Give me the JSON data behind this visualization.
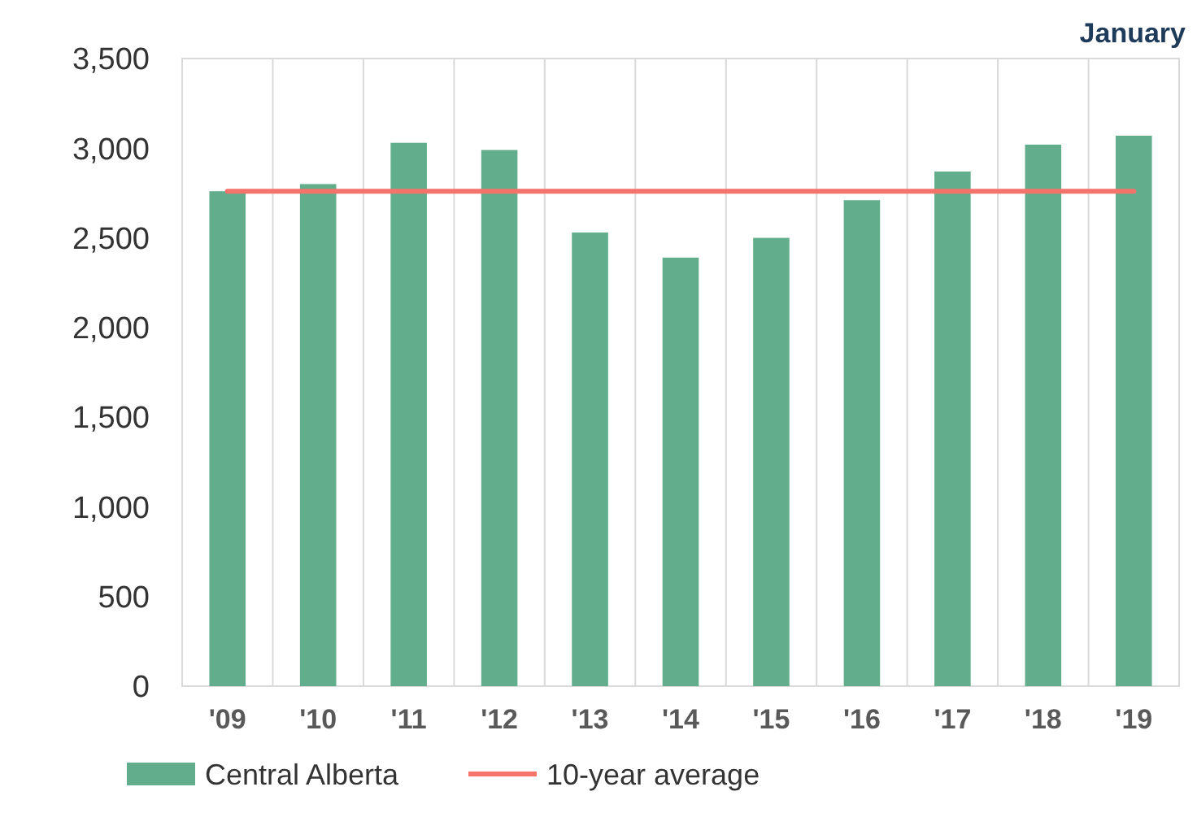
{
  "chart_data": {
    "type": "bar",
    "title": "January",
    "categories": [
      "'09",
      "'10",
      "'11",
      "'12",
      "'13",
      "'14",
      "'15",
      "'16",
      "'17",
      "'18",
      "'19"
    ],
    "series": [
      {
        "name": "Central Alberta",
        "color": "#62ae8c",
        "values": [
          2760,
          2800,
          3030,
          2990,
          2530,
          2390,
          2500,
          2710,
          2870,
          3020,
          3070
        ]
      },
      {
        "name": "10-year average",
        "type": "line",
        "color": "#f4736a",
        "values": [
          2760,
          2760,
          2760,
          2760,
          2760,
          2760,
          2760,
          2760,
          2760,
          2760,
          2760
        ]
      }
    ],
    "ylim": [
      0,
      3500
    ],
    "yticks": [
      0,
      {
        "value": 500,
        "label": "500"
      },
      {
        "value": 1000,
        "label": "1,000"
      },
      {
        "value": 1500,
        "label": "1,500"
      },
      {
        "value": 2000,
        "label": "2,000"
      },
      {
        "value": 2500,
        "label": "2,500"
      },
      {
        "value": 3000,
        "label": "3,000"
      },
      {
        "value": 3500,
        "label": "3,500"
      }
    ],
    "grid": "x",
    "legend": "bottom"
  }
}
